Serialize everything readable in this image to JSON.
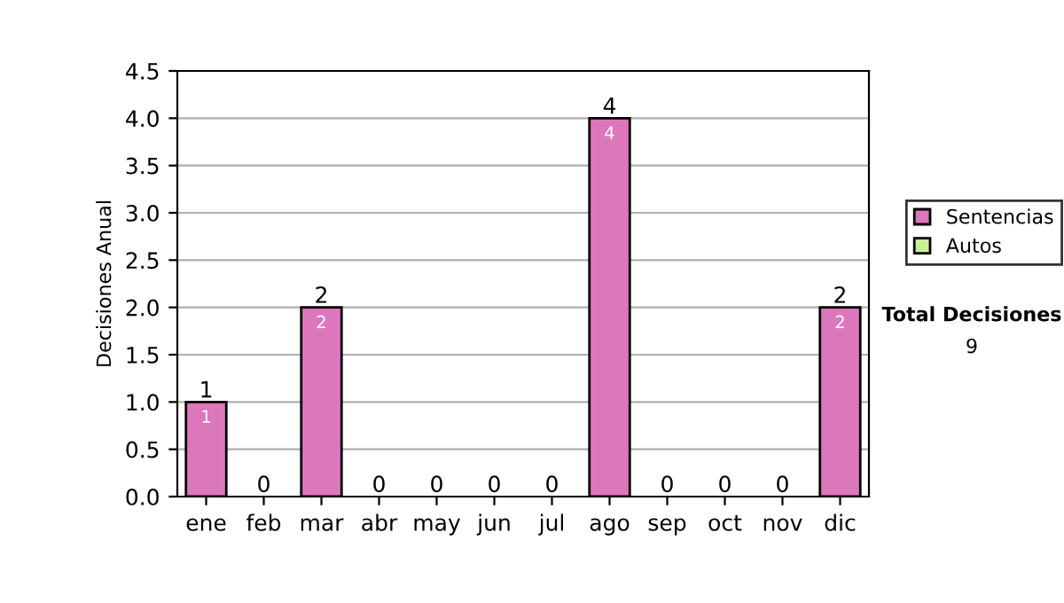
{
  "chart_data": {
    "type": "bar",
    "stacked": true,
    "ylabel": "Decisiones Anual",
    "categories": [
      "ene",
      "feb",
      "mar",
      "abr",
      "may",
      "jun",
      "jul",
      "ago",
      "sep",
      "oct",
      "nov",
      "dic"
    ],
    "series": [
      {
        "name": "Sentencias",
        "color": "#dd77bb",
        "values": [
          1,
          0,
          2,
          0,
          0,
          0,
          0,
          4,
          0,
          0,
          0,
          2
        ],
        "value_labels": [
          "1",
          null,
          "2",
          null,
          null,
          null,
          null,
          "4",
          null,
          null,
          null,
          "2"
        ]
      },
      {
        "name": "Autos",
        "color": "#ccee99",
        "values": [
          0,
          0,
          0,
          0,
          0,
          0,
          0,
          0,
          0,
          0,
          0,
          0
        ]
      }
    ],
    "totals": [
      "1",
      "0",
      "2",
      "0",
      "0",
      "0",
      "0",
      "4",
      "0",
      "0",
      "0",
      "2"
    ],
    "ylim": [
      0,
      4.5
    ],
    "yticks": [
      {
        "value": 0,
        "label": "0.0"
      },
      {
        "value": 0.5,
        "label": "0.5"
      },
      {
        "value": 1,
        "label": "1.0"
      },
      {
        "value": 1.5,
        "label": "1.5"
      },
      {
        "value": 2,
        "label": "2.0"
      },
      {
        "value": 2.5,
        "label": "2.5"
      },
      {
        "value": 3,
        "label": "3.0"
      },
      {
        "value": 3.5,
        "label": "3.5"
      },
      {
        "value": 4,
        "label": "4.0"
      },
      {
        "value": 4.5,
        "label": "4.5"
      }
    ],
    "grid": "y",
    "legend": "right",
    "annotations": [
      "Total Decisiones",
      "9"
    ]
  }
}
